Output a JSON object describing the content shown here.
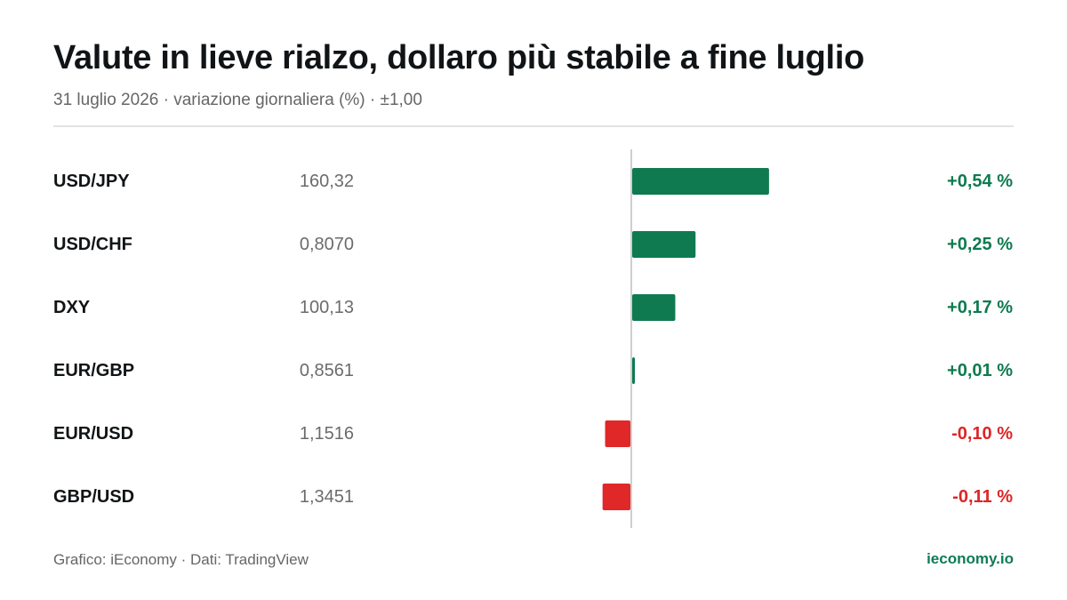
{
  "header": {
    "title": "Valute in lieve rialzo, dollaro più stabile a fine luglio",
    "subtitle": "31 luglio 2026 · variazione giornaliera (%) · ±1,00"
  },
  "footer": {
    "credit": "Grafico: iEconomy · Dati: TradingView",
    "site": "ieconomy.io"
  },
  "colors": {
    "positive": "#0f7a50",
    "negative": "#e02828",
    "positive_text": "#0f7a50",
    "negative_text": "#dc2626",
    "axis": "#cfcfcf"
  },
  "chart_data": {
    "type": "bar",
    "orientation": "horizontal",
    "title": "Valute in lieve rialzo, dollaro più stabile a fine luglio",
    "subtitle": "31 luglio 2026 · variazione giornaliera (%) · ±1,00",
    "xlim": [
      -1.0,
      1.0
    ],
    "grid": false,
    "categories": [
      "USD/JPY",
      "USD/CHF",
      "DXY",
      "EUR/GBP",
      "EUR/USD",
      "GBP/USD"
    ],
    "prices": [
      "160,32",
      "0,8070",
      "100,13",
      "0,8561",
      "1,1516",
      "1,3451"
    ],
    "values": [
      0.54,
      0.25,
      0.17,
      0.01,
      -0.1,
      -0.11
    ],
    "value_labels": [
      "+0,54 %",
      "+0,25 %",
      "+0,17 %",
      "+0,01 %",
      "-0,10 %",
      "-0,11 %"
    ]
  }
}
